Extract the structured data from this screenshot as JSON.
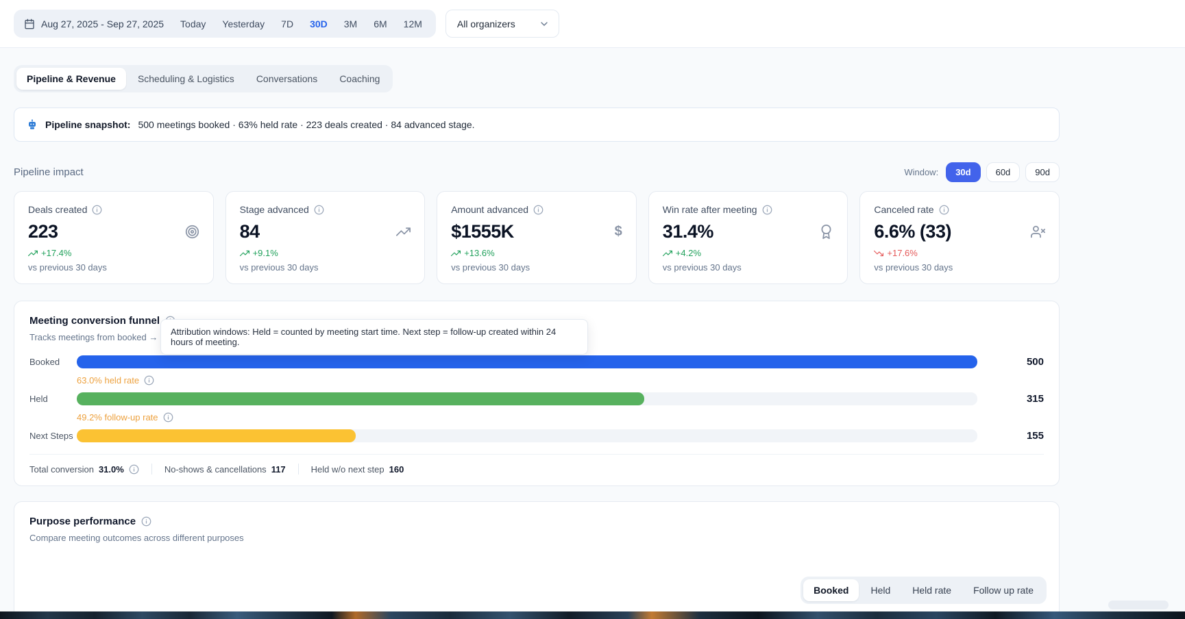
{
  "topbar": {
    "date_range": "Aug 27, 2025 - Sep 27, 2025",
    "presets": [
      {
        "label": "Today",
        "active": false
      },
      {
        "label": "Yesterday",
        "active": false
      },
      {
        "label": "7D",
        "active": false
      },
      {
        "label": "30D",
        "active": true
      },
      {
        "label": "3M",
        "active": false
      },
      {
        "label": "6M",
        "active": false
      },
      {
        "label": "12M",
        "active": false
      }
    ],
    "organizer_filter": {
      "value": "All organizers"
    }
  },
  "tabs": [
    {
      "label": "Pipeline & Revenue",
      "active": true
    },
    {
      "label": "Scheduling & Logistics",
      "active": false
    },
    {
      "label": "Conversations",
      "active": false
    },
    {
      "label": "Coaching",
      "active": false
    }
  ],
  "snapshot": {
    "label": "Pipeline snapshot:",
    "text": "500 meetings booked · 63% held rate · 223 deals created · 84 advanced stage."
  },
  "impact": {
    "title": "Pipeline impact",
    "window_label": "Window:",
    "windows": [
      {
        "label": "30d",
        "active": true
      },
      {
        "label": "60d",
        "active": false
      },
      {
        "label": "90d",
        "active": false
      }
    ],
    "cards": [
      {
        "title": "Deals created",
        "value": "223",
        "delta": "+17.4%",
        "trend": "up",
        "caption": "vs previous 30 days",
        "icon": "target"
      },
      {
        "title": "Stage advanced",
        "value": "84",
        "delta": "+9.1%",
        "trend": "up",
        "caption": "vs previous 30 days",
        "icon": "trending-up"
      },
      {
        "title": "Amount advanced",
        "value": "$1555K",
        "delta": "+13.6%",
        "trend": "up",
        "caption": "vs previous 30 days",
        "icon": "dollar-sign"
      },
      {
        "title": "Win rate after meeting",
        "value": "31.4%",
        "delta": "+4.2%",
        "trend": "up",
        "caption": "vs previous 30 days",
        "icon": "award"
      },
      {
        "title": "Canceled rate",
        "value": "6.6% (33)",
        "delta": "+17.6%",
        "trend": "down",
        "caption": "vs previous 30 days",
        "icon": "user-x"
      }
    ]
  },
  "funnel": {
    "title": "Meeting conversion funnel",
    "subtitle_visible": "Tracks meetings from booked → held",
    "tooltip": "Attribution windows: Held = counted by meeting start time. Next step = follow-up created within 24 hours of meeting.",
    "rows": [
      {
        "label": "Booked",
        "value": "500",
        "pct": 100,
        "color": "#2563eb"
      },
      {
        "label": "Held",
        "value": "315",
        "pct": 63,
        "color": "#57b15e"
      },
      {
        "label": "Next Steps",
        "value": "155",
        "pct": 31,
        "color": "#fbc233"
      }
    ],
    "connectors": [
      {
        "text": "63.0% held rate"
      },
      {
        "text": "49.2% follow-up rate"
      }
    ],
    "stats": [
      {
        "label": "Total conversion",
        "value": "31.0%"
      },
      {
        "label": "No-shows & cancellations",
        "value": "117"
      },
      {
        "label": "Held w/o next step",
        "value": "160"
      }
    ]
  },
  "purpose": {
    "title": "Purpose performance",
    "subtitle": "Compare meeting outcomes across different purposes",
    "metrics": [
      {
        "label": "Booked",
        "active": true
      },
      {
        "label": "Held",
        "active": false
      },
      {
        "label": "Held rate",
        "active": false
      },
      {
        "label": "Follow up rate",
        "active": false
      }
    ]
  },
  "chart_data": {
    "type": "bar",
    "orientation": "horizontal",
    "title": "Meeting conversion funnel",
    "categories": [
      "Booked",
      "Held",
      "Next Steps"
    ],
    "values": [
      500,
      315,
      155
    ],
    "xlim": [
      0,
      500
    ],
    "annotations": [
      "63.0% held rate",
      "49.2% follow-up rate"
    ],
    "bar_colors": [
      "#2563eb",
      "#57b15e",
      "#fbc233"
    ]
  },
  "colors": {
    "accent_blue": "#2563eb",
    "window_active_blue": "#4263eb",
    "positive_green": "#1fa05a",
    "negative_red": "#e45858",
    "amber_rate": "#eda13e",
    "bar_blue": "#2563eb",
    "bar_green": "#57b15e",
    "bar_yellow": "#fbc233"
  }
}
